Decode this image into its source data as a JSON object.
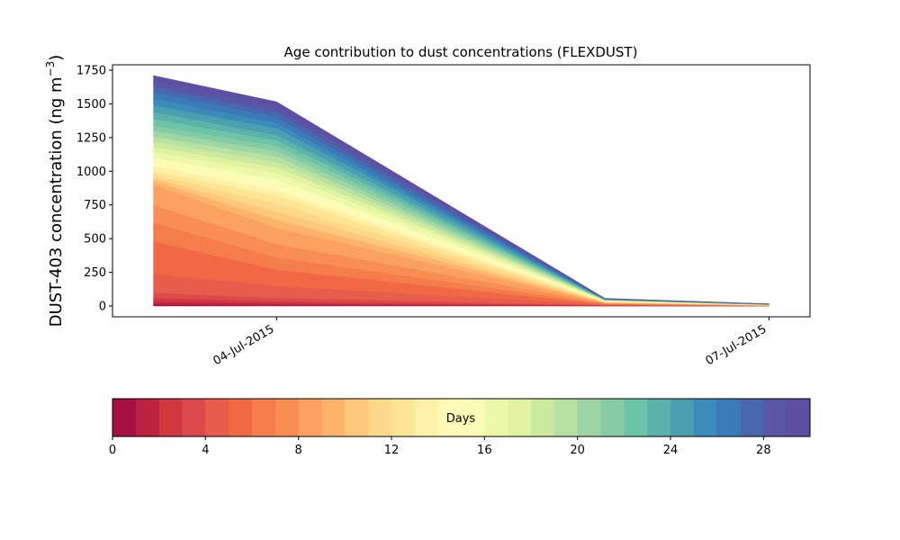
{
  "chart_data": {
    "type": "area",
    "stacked": true,
    "title": "Age contribution to dust concentrations (FLEXDUST)",
    "ylabel": "DUST-403 concentration (ng m",
    "ylabel_superscript": "−3",
    "ylabel_close": ")",
    "xlabel": "",
    "x": [
      "2015-07-03 06:00",
      "2015-07-04 00:00",
      "2015-07-06 00:00",
      "2015-07-07 00:00"
    ],
    "x_ticks": [
      {
        "date": "2015-07-04 00:00",
        "label": "04-Jul-2015"
      },
      {
        "date": "2015-07-07 00:00",
        "label": "07-Jul-2015"
      }
    ],
    "xlim": [
      "2015-07-03 00:00",
      "2015-07-07 06:00"
    ],
    "ylim": [
      -80,
      1790
    ],
    "y_ticks": [
      0,
      250,
      500,
      750,
      1000,
      1250,
      1500,
      1750
    ],
    "cumulative_totals_by_age_day": [
      [
        0,
        0,
        0,
        0
      ],
      [
        10,
        5,
        1,
        0.2
      ],
      [
        30,
        18,
        3,
        0.5
      ],
      [
        60,
        35,
        5,
        1
      ],
      [
        100,
        60,
        7,
        1.5
      ],
      [
        240,
        150,
        10,
        2
      ],
      [
        480,
        270,
        14,
        3
      ],
      [
        620,
        360,
        17,
        3.5
      ],
      [
        750,
        460,
        20,
        4
      ],
      [
        900,
        580,
        24,
        5
      ],
      [
        930,
        640,
        26,
        5.5
      ],
      [
        950,
        700,
        28,
        6
      ],
      [
        975,
        760,
        30,
        6.5
      ],
      [
        1000,
        820,
        32,
        7
      ],
      [
        1040,
        860,
        34,
        7.5
      ],
      [
        1070,
        900,
        36,
        8
      ],
      [
        1100,
        940,
        38,
        8.5
      ],
      [
        1140,
        990,
        40,
        9
      ],
      [
        1180,
        1030,
        42,
        9.5
      ],
      [
        1220,
        1070,
        43,
        10
      ],
      [
        1260,
        1110,
        44,
        10.5
      ],
      [
        1300,
        1150,
        45,
        11
      ],
      [
        1340,
        1190,
        47,
        11.5
      ],
      [
        1390,
        1230,
        48,
        12
      ],
      [
        1440,
        1270,
        49,
        12.5
      ],
      [
        1490,
        1320,
        50,
        13
      ],
      [
        1540,
        1360,
        52,
        13.5
      ],
      [
        1590,
        1400,
        53,
        14
      ],
      [
        1630,
        1440,
        54,
        14.5
      ],
      [
        1670,
        1480,
        55,
        15
      ],
      [
        1710,
        1515,
        56,
        15.5
      ]
    ],
    "colorbar": {
      "label": "Days",
      "range": [
        0,
        30
      ],
      "ticks": [
        0,
        4,
        8,
        12,
        16,
        20,
        24,
        28
      ],
      "colors": [
        "#a50f42",
        "#bc213f",
        "#d0373e",
        "#dc4a4c",
        "#e65d4c",
        "#f06944",
        "#f57c4b",
        "#f98e55",
        "#fba15f",
        "#fdb46a",
        "#fec77a",
        "#fed889",
        "#fee495",
        "#fff1a8",
        "#fefbb6",
        "#f9fcb4",
        "#eef8a9",
        "#e0f3a0",
        "#ccea9f",
        "#b6e1a1",
        "#9dd6a4",
        "#85cca5",
        "#6cc3a5",
        "#5cb1aa",
        "#4a9fb0",
        "#3b8cba",
        "#3c79b8",
        "#4867ad",
        "#5956a5",
        "#5e4fa2"
      ]
    }
  }
}
